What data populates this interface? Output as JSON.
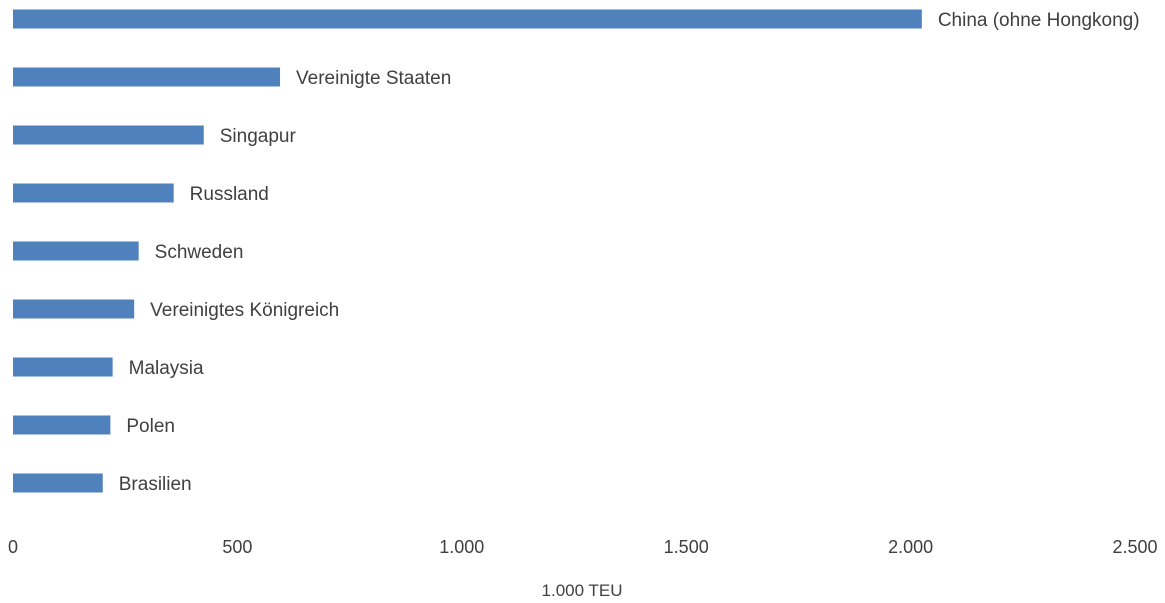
{
  "chart_data": {
    "type": "bar",
    "orientation": "horizontal",
    "categories": [
      "China (ohne Hongkong)",
      "Vereinigte Staaten",
      "Singapur",
      "Russland",
      "Schweden",
      "Vereinigtes Königreich",
      "Malaysia",
      "Polen",
      "Brasilien"
    ],
    "values": [
      2025,
      595,
      425,
      358,
      280,
      270,
      222,
      217,
      200
    ],
    "xlabel": "1.000 TEU",
    "xlim": [
      0,
      2500
    ],
    "xticks": [
      0,
      500,
      1000,
      1500,
      2000,
      2500
    ],
    "xtick_labels": [
      "0",
      "500",
      "1.000",
      "1.500",
      "2.000",
      "2.500"
    ],
    "grid": false,
    "legend": "none",
    "data_labels": "category names at bar ends",
    "colors": {
      "bar": "#4f81bd",
      "text": "#404040"
    }
  }
}
